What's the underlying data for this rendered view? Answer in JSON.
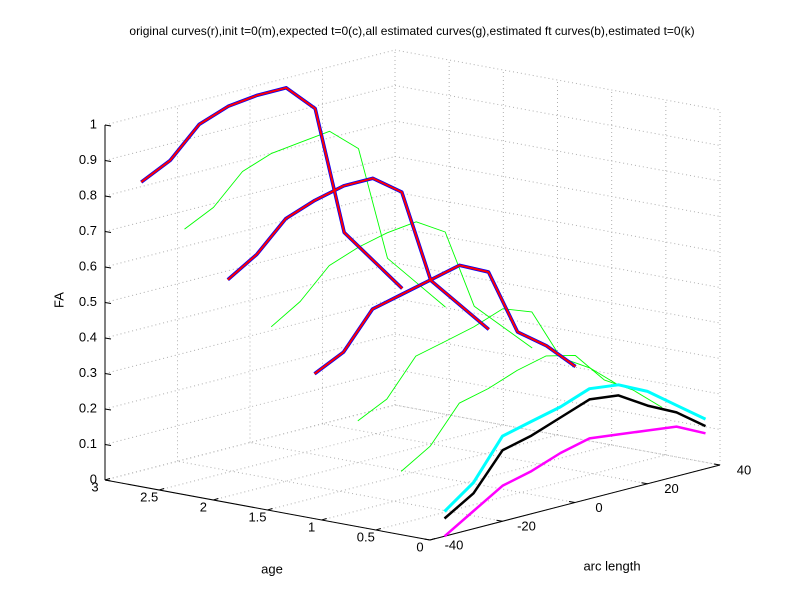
{
  "chart_data": {
    "type": "line3d",
    "title": "original curves(r),init t=0(m),expected t=0(c),all estimated curves(g),estimated ft curves(b),estimated t=0(k)",
    "xlabel": "arc length",
    "ylabel": "age",
    "zlabel": "FA",
    "xlim": [
      -40,
      40
    ],
    "ylim": [
      0,
      3
    ],
    "zlim": [
      0,
      1
    ],
    "xticks": [
      -40,
      -20,
      0,
      20,
      40
    ],
    "yticks": [
      0,
      0.5,
      1,
      1.5,
      2,
      2.5,
      3
    ],
    "zticks": [
      0,
      0.1,
      0.2,
      0.3,
      0.4,
      0.5,
      0.6,
      0.7,
      0.8,
      0.9,
      1
    ],
    "grid": true,
    "x": [
      -36,
      -28,
      -20,
      -12,
      -4,
      4,
      12,
      20,
      28,
      36
    ],
    "series": [
      {
        "color": "#00ff00",
        "age": 0.4,
        "values": [
          0.16,
          0.21,
          0.31,
          0.33,
          0.36,
          0.38,
          0.36,
          0.27,
          0.22,
          0.15
        ]
      },
      {
        "color": "#00ff00",
        "age": 0.8,
        "values": [
          0.28,
          0.32,
          0.42,
          0.44,
          0.46,
          0.49,
          0.46,
          0.31,
          0.26,
          0.19
        ]
      },
      {
        "color": "#00ff00",
        "age": 1.2,
        "values": [
          0.39,
          0.43,
          0.53,
          0.55,
          0.57,
          0.59,
          0.55,
          0.36,
          0.3,
          0.22
        ]
      },
      {
        "color": "#00ff00",
        "age": 1.6,
        "values": [
          0.5,
          0.55,
          0.63,
          0.66,
          0.68,
          0.69,
          0.64,
          0.41,
          0.33,
          0.25
        ]
      },
      {
        "color": "#00ff00",
        "age": 2.0,
        "values": [
          0.61,
          0.66,
          0.74,
          0.77,
          0.79,
          0.79,
          0.73,
          0.46,
          0.37,
          0.28
        ]
      },
      {
        "color": "#00ff00",
        "age": 2.4,
        "values": [
          0.73,
          0.77,
          0.85,
          0.88,
          0.89,
          0.9,
          0.83,
          0.5,
          0.41,
          0.32
        ]
      },
      {
        "color": "#0000ff",
        "age": 2.8,
        "values": [
          0.84,
          0.88,
          0.96,
          0.99,
          1.0,
          1.0,
          0.92,
          0.55,
          0.45,
          0.35
        ]
      },
      {
        "color": "#0000ff",
        "age": 2.0,
        "values": [
          0.61,
          0.66,
          0.74,
          0.77,
          0.79,
          0.79,
          0.73,
          0.46,
          0.37,
          0.28
        ]
      },
      {
        "color": "#0000ff",
        "age": 1.2,
        "values": [
          0.39,
          0.43,
          0.53,
          0.55,
          0.57,
          0.59,
          0.55,
          0.36,
          0.3,
          0.22
        ]
      },
      {
        "color": "#ff0000",
        "age": 2.8,
        "values": [
          0.84,
          0.88,
          0.96,
          0.99,
          1.0,
          1.0,
          0.92,
          0.55,
          0.45,
          0.35
        ]
      },
      {
        "color": "#ff0000",
        "age": 2.0,
        "values": [
          0.61,
          0.66,
          0.74,
          0.77,
          0.79,
          0.79,
          0.73,
          0.46,
          0.37,
          0.28
        ]
      },
      {
        "color": "#ff0000",
        "age": 1.2,
        "values": [
          0.39,
          0.43,
          0.53,
          0.55,
          0.57,
          0.59,
          0.55,
          0.36,
          0.3,
          0.22
        ]
      },
      {
        "color": "#ff00ff",
        "age": 0,
        "values": [
          0.0,
          0.05,
          0.1,
          0.12,
          0.15,
          0.17,
          0.16,
          0.15,
          0.14,
          0.1
        ]
      },
      {
        "color": "#00ffff",
        "age": 0,
        "values": [
          0.07,
          0.13,
          0.24,
          0.26,
          0.28,
          0.31,
          0.3,
          0.26,
          0.2,
          0.14
        ]
      },
      {
        "color": "#000000",
        "age": 0,
        "values": [
          0.05,
          0.1,
          0.2,
          0.22,
          0.25,
          0.28,
          0.27,
          0.22,
          0.18,
          0.12
        ]
      }
    ]
  }
}
